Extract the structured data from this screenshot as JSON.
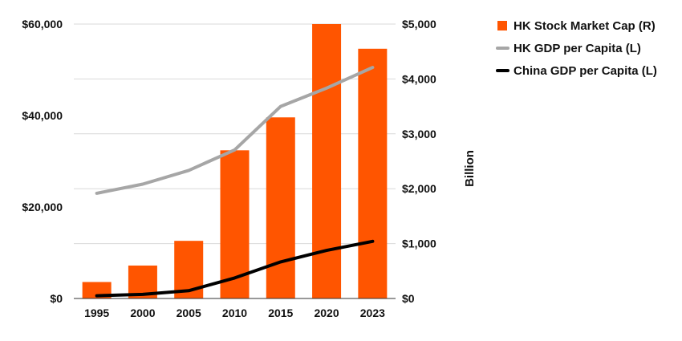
{
  "chart_data": {
    "type": "bar-line-combo",
    "title": "",
    "categories": [
      "1995",
      "2000",
      "2005",
      "2010",
      "2015",
      "2020",
      "2023"
    ],
    "series": [
      {
        "name": "HK Stock Market Cap (R)",
        "type": "bar",
        "axis": "right",
        "values": [
          300,
          600,
          1050,
          2700,
          3300,
          5000,
          4550
        ],
        "color": "#FF5500"
      },
      {
        "name": "HK GDP per Capita (L)",
        "type": "line",
        "axis": "left",
        "values": [
          23000,
          25000,
          28000,
          32500,
          42000,
          46000,
          50500
        ],
        "color": "#A6A6A6"
      },
      {
        "name": "China GDP per Capita (L)",
        "type": "line",
        "axis": "left",
        "values": [
          600,
          900,
          1700,
          4500,
          8000,
          10500,
          12500
        ],
        "color": "#000000"
      }
    ],
    "left_axis": {
      "range": [
        0,
        60000
      ],
      "ticks": [
        0,
        20000,
        40000,
        60000
      ],
      "tick_labels": [
        "$0",
        "$20,000",
        "$40,000",
        "$60,000"
      ],
      "label": ""
    },
    "right_axis": {
      "range": [
        0,
        5000
      ],
      "ticks": [
        0,
        1000,
        2000,
        3000,
        4000,
        5000
      ],
      "tick_labels": [
        "$0",
        "$1,000",
        "$2,000",
        "$3,000",
        "$4,000",
        "$5,000"
      ],
      "label": "Billion"
    },
    "grid": true,
    "legend_position": "top-right"
  }
}
